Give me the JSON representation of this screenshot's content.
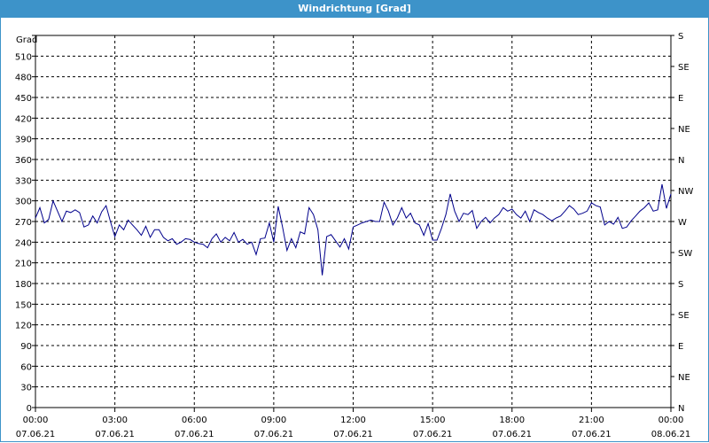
{
  "window": {
    "title": "Windrichtung [Grad]"
  },
  "colors": {
    "titlebar": "#3d93c9",
    "line": "#00008b",
    "grid": "#000000"
  },
  "chart_data": {
    "type": "line",
    "title": "Windrichtung [Grad]",
    "ylabel": "Grad",
    "ylim": [
      0,
      540
    ],
    "yticks": [
      0,
      30,
      60,
      90,
      120,
      150,
      180,
      210,
      240,
      270,
      300,
      330,
      360,
      390,
      420,
      450,
      480,
      510
    ],
    "right_axis": {
      "labels": [
        "N",
        "NE",
        "E",
        "SE",
        "S",
        "SW",
        "W",
        "NW",
        "N",
        "NE",
        "E",
        "SE",
        "S"
      ],
      "values": [
        0,
        45,
        90,
        135,
        180,
        225,
        270,
        315,
        360,
        405,
        450,
        495,
        540
      ]
    },
    "xlim": [
      "2021-06-07 00:00",
      "2021-06-08 00:00"
    ],
    "xticks": [
      {
        "time": "00:00",
        "date": "07.06.21",
        "h": 0
      },
      {
        "time": "03:00",
        "date": "07.06.21",
        "h": 3
      },
      {
        "time": "06:00",
        "date": "07.06.21",
        "h": 6
      },
      {
        "time": "09:00",
        "date": "07.06.21",
        "h": 9
      },
      {
        "time": "12:00",
        "date": "07.06.21",
        "h": 12
      },
      {
        "time": "15:00",
        "date": "07.06.21",
        "h": 15
      },
      {
        "time": "18:00",
        "date": "07.06.21",
        "h": 18
      },
      {
        "time": "21:00",
        "date": "07.06.21",
        "h": 21
      },
      {
        "time": "00:00",
        "date": "08.06.21",
        "h": 24
      }
    ],
    "grid": true,
    "series": [
      {
        "x": [
          "00:00",
          "00:10",
          "00:20",
          "00:30",
          "00:40",
          "00:50",
          "01:00",
          "01:10",
          "01:20",
          "01:30",
          "01:40",
          "01:50",
          "02:00",
          "02:10",
          "02:20",
          "02:30",
          "02:40",
          "02:50",
          "03:00",
          "03:10",
          "03:20",
          "03:30",
          "03:40",
          "03:50",
          "04:00",
          "04:10",
          "04:20",
          "04:30",
          "04:40",
          "04:50",
          "05:00",
          "05:10",
          "05:20",
          "05:30",
          "05:40",
          "05:50",
          "06:00",
          "06:10",
          "06:20",
          "06:30",
          "06:40",
          "06:50",
          "07:00",
          "07:10",
          "07:20",
          "07:30",
          "07:40",
          "07:50",
          "08:00",
          "08:10",
          "08:20",
          "08:30",
          "08:40",
          "08:50",
          "09:00",
          "09:10",
          "09:20",
          "09:30",
          "09:40",
          "09:50",
          "10:00",
          "10:10",
          "10:20",
          "10:30",
          "10:40",
          "10:50",
          "11:00",
          "11:10",
          "11:20",
          "11:30",
          "11:40",
          "11:50",
          "12:00",
          "12:10",
          "12:20",
          "12:30",
          "12:40",
          "12:50",
          "13:00",
          "13:10",
          "13:20",
          "13:30",
          "13:40",
          "13:50",
          "14:00",
          "14:10",
          "14:20",
          "14:30",
          "14:40",
          "14:50",
          "15:00",
          "15:10",
          "15:20",
          "15:30",
          "15:40",
          "15:50",
          "16:00",
          "16:10",
          "16:20",
          "16:30",
          "16:40",
          "16:50",
          "17:00",
          "17:10",
          "17:20",
          "17:30",
          "17:40",
          "17:50",
          "18:00",
          "18:10",
          "18:20",
          "18:30",
          "18:40",
          "18:50",
          "19:00",
          "19:10",
          "19:20",
          "19:30",
          "19:40",
          "19:50",
          "20:00",
          "20:10",
          "20:20",
          "20:30",
          "20:40",
          "20:50",
          "21:00",
          "21:10",
          "21:20",
          "21:30",
          "21:40",
          "21:50",
          "22:00",
          "22:10",
          "22:20",
          "22:30",
          "22:40",
          "22:50",
          "23:00",
          "23:10",
          "23:20",
          "23:30",
          "23:40",
          "23:50",
          "24:00"
        ],
        "values": [
          275,
          290,
          268,
          273,
          300,
          285,
          270,
          285,
          283,
          287,
          283,
          262,
          265,
          278,
          268,
          284,
          293,
          270,
          248,
          265,
          258,
          272,
          265,
          258,
          250,
          263,
          247,
          258,
          258,
          247,
          242,
          245,
          237,
          240,
          245,
          244,
          240,
          238,
          237,
          232,
          245,
          252,
          240,
          247,
          242,
          254,
          240,
          244,
          237,
          240,
          222,
          245,
          246,
          268,
          240,
          292,
          262,
          228,
          245,
          232,
          255,
          252,
          290,
          280,
          258,
          192,
          248,
          251,
          242,
          233,
          245,
          230,
          262,
          265,
          268,
          270,
          272,
          270,
          270,
          298,
          285,
          265,
          275,
          290,
          275,
          282,
          268,
          265,
          250,
          267,
          243,
          243,
          260,
          280,
          310,
          285,
          270,
          282,
          280,
          286,
          260,
          270,
          276,
          268,
          275,
          280,
          290,
          285,
          288,
          280,
          275,
          285,
          270,
          287,
          283,
          280,
          275,
          271,
          275,
          278,
          285,
          293,
          288,
          280,
          282,
          285,
          297,
          293,
          291,
          265,
          270,
          266,
          276,
          260,
          262,
          271,
          278,
          285,
          290,
          297,
          285,
          287,
          324,
          289,
          310
        ]
      }
    ]
  }
}
